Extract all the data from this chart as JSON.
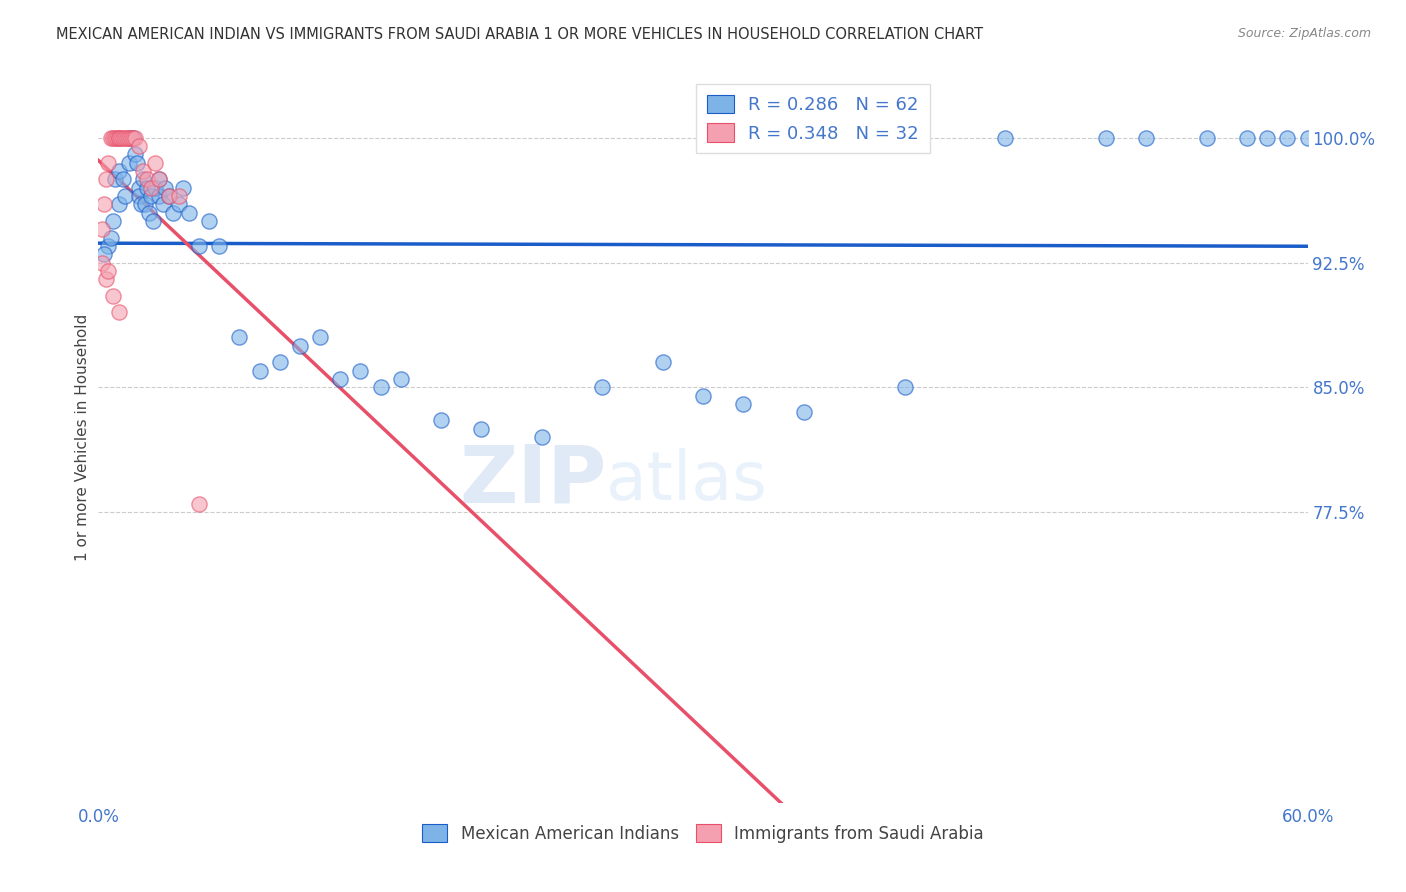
{
  "title": "MEXICAN AMERICAN INDIAN VS IMMIGRANTS FROM SAUDI ARABIA 1 OR MORE VEHICLES IN HOUSEHOLD CORRELATION CHART",
  "source": "Source: ZipAtlas.com",
  "xlabel": "",
  "ylabel": "1 or more Vehicles in Household",
  "xmin": 0.0,
  "xmax": 60.0,
  "ymin": 60.0,
  "ymax": 104.0,
  "yticks": [
    77.5,
    85.0,
    92.5,
    100.0
  ],
  "xticks": [
    0.0,
    10.0,
    20.0,
    30.0,
    40.0,
    50.0,
    60.0
  ],
  "legend_blue_label": "Mexican American Indians",
  "legend_pink_label": "Immigrants from Saudi Arabia",
  "R_blue": 0.286,
  "N_blue": 62,
  "R_pink": 0.348,
  "N_pink": 32,
  "color_blue": "#7EB3E8",
  "color_pink": "#F4A0B0",
  "trendline_blue": "#1A5DC8",
  "trendline_pink": "#E8506A",
  "watermark_zip": "ZIP",
  "watermark_atlas": "atlas",
  "blue_x": [
    0.5,
    0.7,
    0.8,
    1.0,
    1.0,
    1.2,
    1.3,
    1.5,
    1.5,
    1.7,
    1.8,
    1.9,
    2.0,
    2.0,
    2.1,
    2.2,
    2.3,
    2.4,
    2.5,
    2.6,
    2.7,
    2.8,
    3.0,
    3.0,
    3.2,
    3.3,
    3.5,
    3.7,
    4.0,
    4.2,
    4.5,
    5.0,
    5.5,
    6.0,
    7.0,
    8.0,
    9.0,
    10.0,
    11.0,
    12.0,
    13.0,
    14.0,
    15.0,
    17.0,
    19.0,
    22.0,
    25.0,
    28.0,
    30.0,
    32.0,
    35.0,
    40.0,
    45.0,
    50.0,
    52.0,
    55.0,
    57.0,
    58.0,
    59.0,
    60.0,
    0.3,
    0.6
  ],
  "blue_y": [
    93.5,
    95.0,
    97.5,
    96.0,
    98.0,
    97.5,
    96.5,
    98.5,
    100.0,
    100.0,
    99.0,
    98.5,
    97.0,
    96.5,
    96.0,
    97.5,
    96.0,
    97.0,
    95.5,
    96.5,
    95.0,
    97.0,
    96.5,
    97.5,
    96.0,
    97.0,
    96.5,
    95.5,
    96.0,
    97.0,
    95.5,
    93.5,
    95.0,
    93.5,
    88.0,
    86.0,
    86.5,
    87.5,
    88.0,
    85.5,
    86.0,
    85.0,
    85.5,
    83.0,
    82.5,
    82.0,
    85.0,
    86.5,
    84.5,
    84.0,
    83.5,
    85.0,
    100.0,
    100.0,
    100.0,
    100.0,
    100.0,
    100.0,
    100.0,
    100.0,
    93.0,
    94.0
  ],
  "pink_x": [
    0.2,
    0.3,
    0.4,
    0.5,
    0.6,
    0.7,
    0.8,
    0.9,
    1.0,
    1.0,
    1.1,
    1.2,
    1.3,
    1.4,
    1.5,
    1.6,
    1.7,
    1.8,
    2.0,
    2.2,
    2.4,
    2.6,
    2.8,
    3.0,
    3.5,
    4.0,
    0.2,
    0.4,
    0.5,
    0.7,
    1.0,
    5.0
  ],
  "pink_y": [
    94.5,
    96.0,
    97.5,
    98.5,
    100.0,
    100.0,
    100.0,
    100.0,
    100.0,
    100.0,
    100.0,
    100.0,
    100.0,
    100.0,
    100.0,
    100.0,
    100.0,
    100.0,
    99.5,
    98.0,
    97.5,
    97.0,
    98.5,
    97.5,
    96.5,
    96.5,
    92.5,
    91.5,
    92.0,
    90.5,
    89.5,
    78.0
  ]
}
